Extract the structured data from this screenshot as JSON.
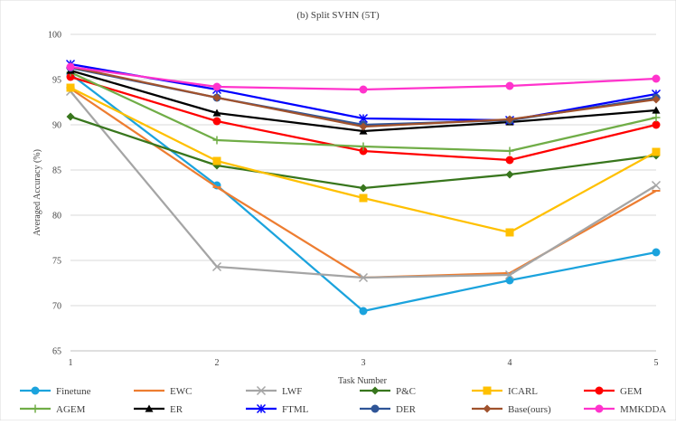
{
  "chart_data": {
    "type": "line",
    "title": "(b)  Split SVHN (5T)",
    "xlabel": "Task Number",
    "ylabel": "Averaged Accuracy (%)",
    "x": [
      1,
      2,
      3,
      4,
      5
    ],
    "x_tick_labels": [
      "1",
      "2",
      "3",
      "4",
      "5"
    ],
    "ylim": [
      65,
      100
    ],
    "y_ticks": [
      65,
      70,
      75,
      80,
      85,
      90,
      95,
      100
    ],
    "y_tick_labels": [
      "65",
      "70",
      "75",
      "80",
      "85",
      "90",
      "95",
      "100"
    ],
    "grid": "horizontal",
    "legend_position": "bottom",
    "series": [
      {
        "name": "Finetune",
        "color": "#1ba3dd",
        "marker": "circle",
        "values": [
          95.6,
          83.3,
          69.4,
          72.8,
          75.9
        ]
      },
      {
        "name": "EWC",
        "color": "#ed7d31",
        "marker": "dash",
        "values": [
          94.0,
          83.1,
          73.1,
          73.6,
          82.7
        ]
      },
      {
        "name": "LWF",
        "color": "#a5a5a5",
        "marker": "x",
        "values": [
          93.7,
          74.3,
          73.1,
          73.4,
          83.3
        ]
      },
      {
        "name": "P&C",
        "color": "#38761d",
        "marker": "diamond",
        "values": [
          90.9,
          85.5,
          83.0,
          84.5,
          86.6
        ]
      },
      {
        "name": "ICARL",
        "color": "#ffc000",
        "marker": "square",
        "values": [
          94.1,
          86.0,
          81.9,
          78.1,
          87.0
        ]
      },
      {
        "name": "GEM",
        "color": "#ff0000",
        "marker": "circle",
        "values": [
          95.3,
          90.4,
          87.1,
          86.1,
          90.0
        ]
      },
      {
        "name": "AGEM",
        "color": "#70ad47",
        "marker": "plus",
        "values": [
          95.8,
          88.3,
          87.6,
          87.1,
          90.8
        ]
      },
      {
        "name": "ER",
        "color": "#000000",
        "marker": "triangle",
        "values": [
          96.0,
          91.3,
          89.3,
          90.3,
          91.6
        ]
      },
      {
        "name": "FTML",
        "color": "#0000ff",
        "marker": "star",
        "values": [
          96.7,
          93.9,
          90.7,
          90.5,
          93.4
        ]
      },
      {
        "name": "DER",
        "color": "#2f5597",
        "marker": "circle",
        "values": [
          96.3,
          93.0,
          90.0,
          90.5,
          93.0
        ]
      },
      {
        "name": "Base(ours)",
        "color": "#a0522d",
        "marker": "diamond",
        "values": [
          96.4,
          93.0,
          89.8,
          90.6,
          92.8
        ]
      },
      {
        "name": "MMKDDA",
        "color": "#ff33cc",
        "marker": "circle",
        "values": [
          96.4,
          94.2,
          93.9,
          94.3,
          95.1
        ]
      }
    ]
  }
}
